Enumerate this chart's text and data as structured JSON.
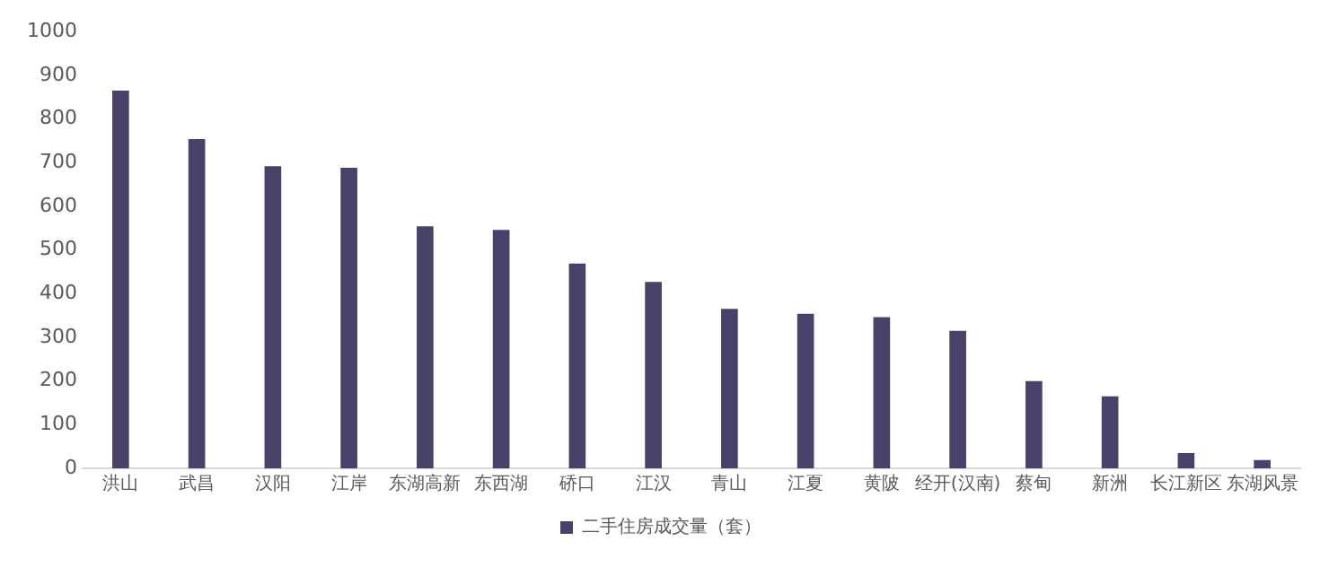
{
  "chart_data": {
    "type": "bar",
    "categories": [
      "洪山",
      "武昌",
      "汉阳",
      "江岸",
      "东湖高新",
      "东西湖",
      "硚口",
      "江汉",
      "青山",
      "江夏",
      "黄陂",
      "经开(汉南)",
      "蔡甸",
      "新洲",
      "长江新区",
      "东湖风景"
    ],
    "series": [
      {
        "name": "二手住房成交量（套）",
        "color": "#46426a",
        "values": [
          865,
          754,
          692,
          688,
          554,
          546,
          469,
          427,
          365,
          354,
          346,
          315,
          200,
          165,
          35,
          19
        ]
      }
    ],
    "ylim": [
      0,
      1000
    ],
    "yticks": [
      0,
      100,
      200,
      300,
      400,
      500,
      600,
      700,
      800,
      900,
      1000
    ],
    "grid": false,
    "legend": "bottom"
  }
}
